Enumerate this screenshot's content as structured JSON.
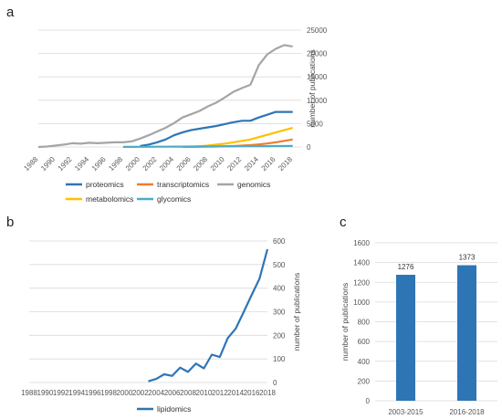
{
  "chart_data": [
    {
      "panel": "a",
      "type": "line",
      "x": [
        1988,
        1989,
        1990,
        1991,
        1992,
        1993,
        1994,
        1995,
        1996,
        1997,
        1998,
        1999,
        2000,
        2001,
        2002,
        2003,
        2004,
        2005,
        2006,
        2007,
        2008,
        2009,
        2010,
        2011,
        2012,
        2013,
        2014,
        2015,
        2016,
        2017,
        2018,
        2019
      ],
      "x_tick_labels": [
        "1988",
        "1990",
        "1992",
        "1994",
        "1996",
        "1998",
        "2000",
        "2002",
        "2004",
        "2006",
        "2008",
        "2010",
        "2012",
        "2014",
        "2016",
        "2018"
      ],
      "y_tick_labels": [
        "0",
        "5000",
        "10000",
        "15000",
        "20000",
        "25000"
      ],
      "ylim": [
        0,
        25000
      ],
      "ylabel": "number of publications",
      "grid": true,
      "legend_position": "bottom",
      "series": [
        {
          "name": "proteomics",
          "color": "#2e75b6",
          "values": [
            null,
            null,
            null,
            null,
            null,
            null,
            null,
            null,
            null,
            null,
            null,
            null,
            200,
            500,
            1000,
            1600,
            2500,
            3100,
            3600,
            3900,
            4200,
            4500,
            4900,
            5300,
            5600,
            5600,
            6300,
            6900,
            7500,
            7500,
            7500,
            null
          ]
        },
        {
          "name": "transcriptomics",
          "color": "#ed7d31",
          "values": [
            null,
            null,
            null,
            null,
            null,
            null,
            null,
            null,
            null,
            null,
            null,
            null,
            null,
            null,
            null,
            null,
            null,
            10,
            20,
            40,
            60,
            100,
            150,
            200,
            300,
            400,
            550,
            750,
            1000,
            1300,
            1600,
            null
          ]
        },
        {
          "name": "genomics",
          "color": "#a5a5a5",
          "values": [
            0,
            100,
            300,
            500,
            800,
            700,
            900,
            800,
            900,
            1000,
            1000,
            1200,
            1800,
            2500,
            3300,
            4100,
            5100,
            6300,
            7000,
            7700,
            8700,
            9500,
            10600,
            11800,
            12600,
            13300,
            17500,
            19800,
            21000,
            21800,
            21500,
            null
          ]
        },
        {
          "name": "metabolomics",
          "color": "#ffc000",
          "values": [
            null,
            null,
            null,
            null,
            null,
            null,
            null,
            null,
            null,
            null,
            null,
            null,
            null,
            null,
            null,
            null,
            null,
            null,
            50,
            150,
            300,
            500,
            700,
            1000,
            1300,
            1600,
            2100,
            2600,
            3100,
            3600,
            4100,
            null
          ]
        },
        {
          "name": "glycomics",
          "color": "#4bacc6",
          "values": [
            null,
            null,
            null,
            null,
            null,
            null,
            null,
            null,
            null,
            null,
            10,
            20,
            30,
            40,
            50,
            60,
            70,
            80,
            90,
            100,
            110,
            120,
            130,
            140,
            150,
            160,
            170,
            180,
            190,
            200,
            210,
            null
          ]
        }
      ]
    },
    {
      "panel": "b",
      "type": "line",
      "x": [
        1988,
        1989,
        1990,
        1991,
        1992,
        1993,
        1994,
        1995,
        1996,
        1997,
        1998,
        1999,
        2000,
        2001,
        2002,
        2003,
        2004,
        2005,
        2006,
        2007,
        2008,
        2009,
        2010,
        2011,
        2012,
        2013,
        2014,
        2015,
        2016,
        2017,
        2018
      ],
      "x_tick_labels": [
        "1988",
        "1990",
        "1992",
        "1994",
        "1996",
        "1998",
        "2000",
        "2002",
        "2004",
        "2006",
        "2008",
        "2010",
        "2012",
        "2014",
        "2016",
        "2018"
      ],
      "y_tick_labels": [
        "0",
        "100",
        "200",
        "300",
        "400",
        "500",
        "600"
      ],
      "ylim": [
        0,
        600
      ],
      "ylabel": "number of publications",
      "grid": true,
      "legend_position": "bottom",
      "series": [
        {
          "name": "lipidomics",
          "color": "#2e75b6",
          "values": [
            null,
            null,
            null,
            null,
            null,
            null,
            null,
            null,
            null,
            null,
            null,
            null,
            null,
            null,
            null,
            5,
            15,
            35,
            28,
            63,
            45,
            80,
            60,
            118,
            108,
            188,
            228,
            298,
            370,
            440,
            565
          ]
        }
      ]
    },
    {
      "panel": "c",
      "type": "bar",
      "categories": [
        "2003-2015",
        "2016-2018"
      ],
      "values": [
        1276,
        1373
      ],
      "data_labels": [
        "1276",
        "1373"
      ],
      "y_tick_labels": [
        "0",
        "200",
        "400",
        "600",
        "800",
        "1000",
        "1200",
        "1400",
        "1600"
      ],
      "ylim": [
        0,
        1600
      ],
      "ylabel": "number of publications",
      "grid": true,
      "color": "#2e75b6"
    }
  ]
}
